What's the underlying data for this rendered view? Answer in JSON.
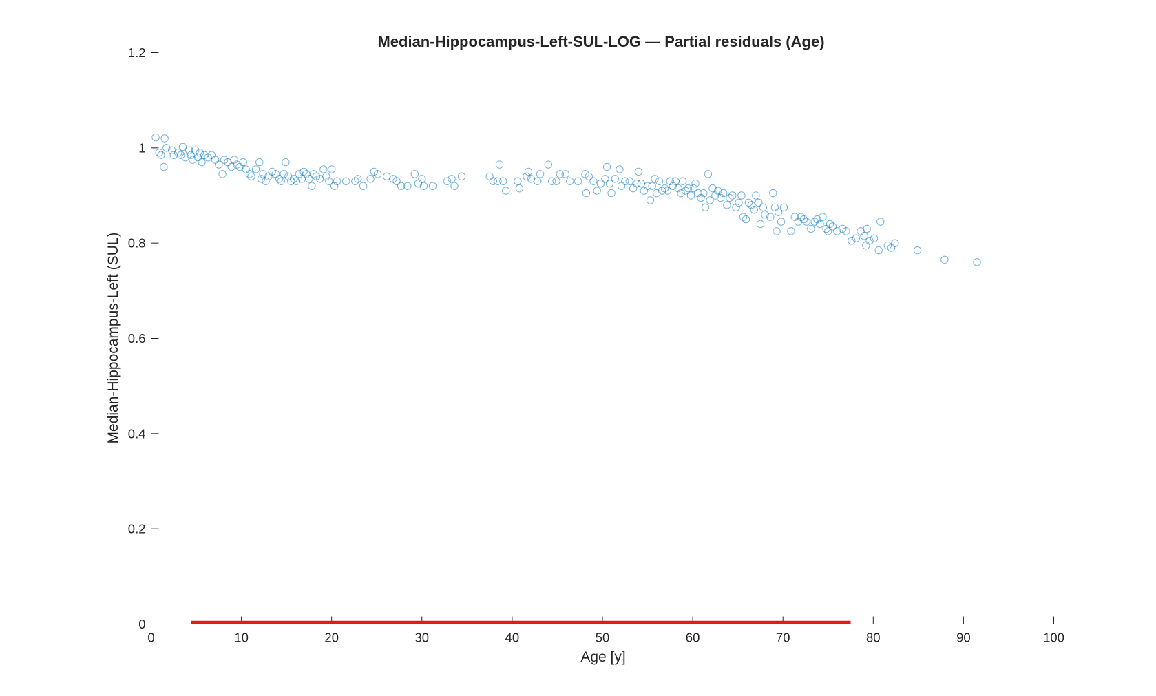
{
  "colors": {
    "points": "#0072BD",
    "significance": "#e8171b",
    "axis": "#262626",
    "background": "#ffffff"
  },
  "chart_data": {
    "type": "scatter",
    "title": "Median-Hippocampus-Left-SUL-LOG — Partial residuals (Age)",
    "xlabel": "Age [y]",
    "ylabel": "Median-Hippocampus-Left (SUL)",
    "xlim": [
      0,
      100
    ],
    "ylim": [
      0,
      1.2
    ],
    "xticks": [
      0,
      10,
      20,
      30,
      40,
      50,
      60,
      70,
      80,
      90,
      100
    ],
    "yticks": [
      0,
      0.2,
      0.4,
      0.6,
      0.8,
      1,
      1.2
    ],
    "xtick_labels": [
      "0",
      "10",
      "20",
      "30",
      "40",
      "50",
      "60",
      "70",
      "80",
      "90",
      "100"
    ],
    "ytick_labels": [
      "0",
      "0.2",
      "0.4",
      "0.6",
      "0.8",
      "1",
      "1.2"
    ],
    "grid": false,
    "marker": "open-circle",
    "significance_segment": {
      "x": [
        4.4,
        77.5
      ],
      "y": 0
    },
    "points": [
      [
        0.5,
        1.022
      ],
      [
        0.9,
        0.99
      ],
      [
        1.1,
        0.985
      ],
      [
        1.4,
        0.96
      ],
      [
        1.5,
        1.02
      ],
      [
        1.7,
        1.0
      ],
      [
        2.3,
        0.995
      ],
      [
        2.5,
        0.985
      ],
      [
        3.0,
        0.99
      ],
      [
        3.3,
        0.985
      ],
      [
        3.5,
        1.002
      ],
      [
        3.8,
        0.98
      ],
      [
        4.2,
        0.995
      ],
      [
        4.4,
        0.985
      ],
      [
        4.6,
        0.975
      ],
      [
        4.9,
        0.995
      ],
      [
        5.2,
        0.98
      ],
      [
        5.4,
        0.99
      ],
      [
        5.6,
        0.97
      ],
      [
        5.9,
        0.985
      ],
      [
        6.3,
        0.98
      ],
      [
        6.7,
        0.985
      ],
      [
        7.1,
        0.975
      ],
      [
        7.5,
        0.965
      ],
      [
        7.9,
        0.945
      ],
      [
        8.1,
        0.975
      ],
      [
        8.5,
        0.97
      ],
      [
        8.9,
        0.96
      ],
      [
        9.2,
        0.975
      ],
      [
        9.5,
        0.965
      ],
      [
        9.8,
        0.96
      ],
      [
        10.2,
        0.97
      ],
      [
        10.5,
        0.955
      ],
      [
        10.9,
        0.945
      ],
      [
        11.1,
        0.94
      ],
      [
        11.6,
        0.955
      ],
      [
        12.0,
        0.97
      ],
      [
        12.2,
        0.935
      ],
      [
        12.4,
        0.945
      ],
      [
        12.7,
        0.93
      ],
      [
        13.0,
        0.94
      ],
      [
        13.4,
        0.95
      ],
      [
        13.8,
        0.945
      ],
      [
        14.2,
        0.935
      ],
      [
        14.4,
        0.93
      ],
      [
        14.7,
        0.945
      ],
      [
        14.9,
        0.97
      ],
      [
        15.2,
        0.94
      ],
      [
        15.5,
        0.93
      ],
      [
        15.8,
        0.935
      ],
      [
        16.1,
        0.93
      ],
      [
        16.4,
        0.945
      ],
      [
        16.7,
        0.935
      ],
      [
        16.9,
        0.95
      ],
      [
        17.2,
        0.945
      ],
      [
        17.5,
        0.935
      ],
      [
        17.8,
        0.92
      ],
      [
        18.0,
        0.945
      ],
      [
        18.3,
        0.94
      ],
      [
        18.7,
        0.935
      ],
      [
        19.1,
        0.955
      ],
      [
        19.4,
        0.94
      ],
      [
        19.7,
        0.93
      ],
      [
        20.0,
        0.955
      ],
      [
        20.3,
        0.92
      ],
      [
        20.6,
        0.93
      ],
      [
        21.6,
        0.93
      ],
      [
        22.6,
        0.93
      ],
      [
        22.9,
        0.935
      ],
      [
        23.5,
        0.92
      ],
      [
        24.3,
        0.935
      ],
      [
        24.7,
        0.95
      ],
      [
        25.1,
        0.945
      ],
      [
        26.1,
        0.94
      ],
      [
        26.8,
        0.935
      ],
      [
        27.2,
        0.93
      ],
      [
        27.7,
        0.92
      ],
      [
        28.4,
        0.92
      ],
      [
        29.2,
        0.945
      ],
      [
        29.6,
        0.925
      ],
      [
        30.0,
        0.935
      ],
      [
        30.2,
        0.92
      ],
      [
        31.2,
        0.92
      ],
      [
        32.8,
        0.93
      ],
      [
        33.3,
        0.935
      ],
      [
        33.6,
        0.92
      ],
      [
        34.4,
        0.94
      ],
      [
        37.5,
        0.94
      ],
      [
        37.9,
        0.93
      ],
      [
        38.4,
        0.93
      ],
      [
        38.6,
        0.965
      ],
      [
        39.0,
        0.93
      ],
      [
        39.3,
        0.91
      ],
      [
        40.6,
        0.93
      ],
      [
        40.8,
        0.915
      ],
      [
        41.6,
        0.94
      ],
      [
        41.8,
        0.95
      ],
      [
        42.1,
        0.935
      ],
      [
        42.8,
        0.93
      ],
      [
        43.1,
        0.945
      ],
      [
        44.0,
        0.965
      ],
      [
        44.4,
        0.93
      ],
      [
        44.9,
        0.93
      ],
      [
        45.3,
        0.945
      ],
      [
        45.9,
        0.945
      ],
      [
        46.4,
        0.93
      ],
      [
        47.3,
        0.93
      ],
      [
        48.1,
        0.945
      ],
      [
        48.2,
        0.905
      ],
      [
        48.5,
        0.94
      ],
      [
        49.0,
        0.93
      ],
      [
        49.4,
        0.91
      ],
      [
        49.8,
        0.925
      ],
      [
        50.3,
        0.935
      ],
      [
        50.5,
        0.96
      ],
      [
        50.8,
        0.925
      ],
      [
        51.0,
        0.905
      ],
      [
        51.4,
        0.935
      ],
      [
        51.9,
        0.955
      ],
      [
        52.1,
        0.92
      ],
      [
        52.5,
        0.93
      ],
      [
        53.0,
        0.93
      ],
      [
        53.4,
        0.915
      ],
      [
        53.8,
        0.925
      ],
      [
        54.0,
        0.95
      ],
      [
        54.3,
        0.925
      ],
      [
        54.6,
        0.91
      ],
      [
        55.0,
        0.92
      ],
      [
        55.3,
        0.89
      ],
      [
        55.5,
        0.92
      ],
      [
        55.8,
        0.935
      ],
      [
        56.0,
        0.905
      ],
      [
        56.3,
        0.93
      ],
      [
        56.6,
        0.91
      ],
      [
        56.9,
        0.915
      ],
      [
        57.2,
        0.91
      ],
      [
        57.5,
        0.93
      ],
      [
        57.8,
        0.92
      ],
      [
        58.1,
        0.93
      ],
      [
        58.4,
        0.915
      ],
      [
        58.7,
        0.905
      ],
      [
        58.9,
        0.93
      ],
      [
        59.2,
        0.91
      ],
      [
        59.5,
        0.915
      ],
      [
        59.8,
        0.9
      ],
      [
        60.1,
        0.915
      ],
      [
        60.3,
        0.925
      ],
      [
        60.6,
        0.905
      ],
      [
        60.9,
        0.895
      ],
      [
        61.2,
        0.905
      ],
      [
        61.4,
        0.875
      ],
      [
        61.7,
        0.945
      ],
      [
        61.9,
        0.89
      ],
      [
        62.2,
        0.915
      ],
      [
        62.5,
        0.9
      ],
      [
        62.8,
        0.91
      ],
      [
        63.1,
        0.895
      ],
      [
        63.4,
        0.905
      ],
      [
        63.8,
        0.88
      ],
      [
        64.1,
        0.895
      ],
      [
        64.4,
        0.9
      ],
      [
        64.8,
        0.875
      ],
      [
        65.1,
        0.885
      ],
      [
        65.4,
        0.9
      ],
      [
        65.6,
        0.855
      ],
      [
        65.9,
        0.85
      ],
      [
        66.2,
        0.885
      ],
      [
        66.5,
        0.88
      ],
      [
        66.8,
        0.87
      ],
      [
        67.0,
        0.9
      ],
      [
        67.3,
        0.885
      ],
      [
        67.5,
        0.84
      ],
      [
        67.8,
        0.875
      ],
      [
        68.0,
        0.86
      ],
      [
        68.6,
        0.855
      ],
      [
        68.9,
        0.905
      ],
      [
        69.1,
        0.875
      ],
      [
        69.3,
        0.825
      ],
      [
        69.5,
        0.865
      ],
      [
        69.8,
        0.845
      ],
      [
        70.1,
        0.875
      ],
      [
        70.9,
        0.825
      ],
      [
        71.3,
        0.855
      ],
      [
        71.7,
        0.845
      ],
      [
        72.0,
        0.855
      ],
      [
        72.3,
        0.85
      ],
      [
        72.6,
        0.845
      ],
      [
        73.1,
        0.83
      ],
      [
        73.5,
        0.845
      ],
      [
        73.8,
        0.85
      ],
      [
        74.1,
        0.84
      ],
      [
        74.4,
        0.855
      ],
      [
        74.8,
        0.83
      ],
      [
        75.0,
        0.825
      ],
      [
        75.2,
        0.84
      ],
      [
        75.5,
        0.835
      ],
      [
        76.0,
        0.825
      ],
      [
        76.6,
        0.83
      ],
      [
        77.0,
        0.825
      ],
      [
        77.6,
        0.805
      ],
      [
        78.1,
        0.81
      ],
      [
        78.6,
        0.825
      ],
      [
        79.0,
        0.815
      ],
      [
        79.2,
        0.795
      ],
      [
        79.3,
        0.83
      ],
      [
        79.6,
        0.805
      ],
      [
        80.1,
        0.81
      ],
      [
        80.6,
        0.785
      ],
      [
        80.8,
        0.845
      ],
      [
        81.6,
        0.795
      ],
      [
        82.0,
        0.79
      ],
      [
        82.4,
        0.8
      ],
      [
        84.9,
        0.785
      ],
      [
        87.9,
        0.765
      ],
      [
        91.5,
        0.76
      ]
    ]
  }
}
